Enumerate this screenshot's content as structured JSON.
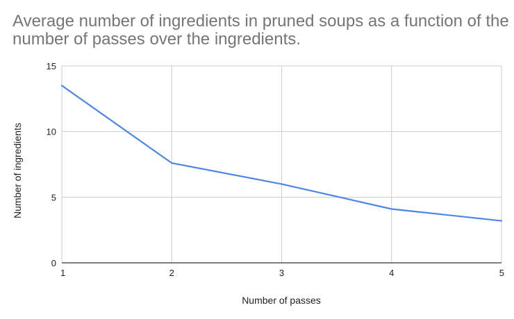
{
  "chart_data": {
    "type": "line",
    "title": "Average number of ingredients in pruned soups as a function of the number of passes over the ingredients.",
    "xlabel": "Number of passes",
    "ylabel": "Number of ingredients",
    "x": [
      1,
      2,
      3,
      4,
      5
    ],
    "series": [
      {
        "values": [
          13.5,
          7.6,
          6.0,
          4.1,
          3.2
        ]
      }
    ],
    "xlim": [
      1,
      5
    ],
    "ylim": [
      0,
      15
    ],
    "x_ticks": [
      "1",
      "2",
      "3",
      "4",
      "5"
    ],
    "y_ticks": [
      "0",
      "5",
      "10",
      "15"
    ],
    "grid": true,
    "legend": "none",
    "colors": {
      "line": "#4a86e8",
      "grid": "#cccccc",
      "axis": "#333333",
      "title": "#757575"
    }
  }
}
